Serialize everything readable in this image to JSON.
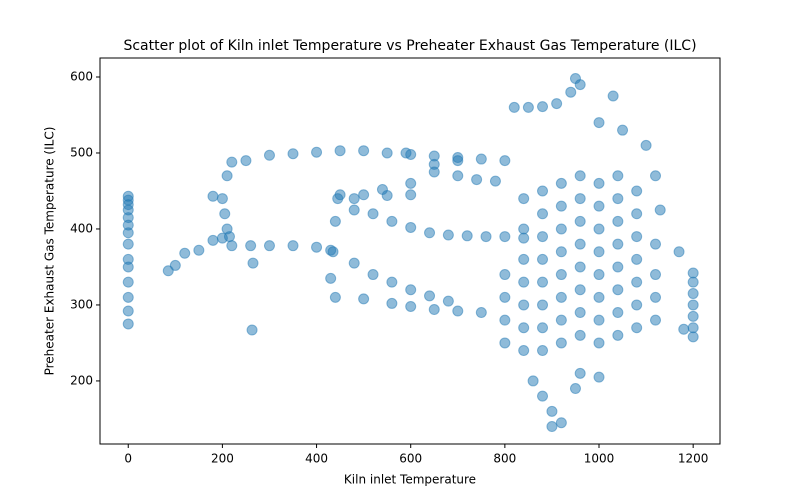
{
  "chart_data": {
    "type": "scatter",
    "title": "Scatter plot of Kiln inlet Temperature vs Preheater Exhaust Gas Temperature (ILC)",
    "xlabel": "Kiln inlet Temperature",
    "ylabel": "Preheater Exhaust Gas Temperature (ILC)",
    "color": "#1f77b4",
    "xlim": [
      -60,
      1257
    ],
    "ylim": [
      117,
      625
    ],
    "xticks": [
      0,
      200,
      400,
      600,
      800,
      1000,
      1200
    ],
    "yticks": [
      200,
      300,
      400,
      500,
      600
    ],
    "x": [
      0,
      0,
      0,
      0,
      0,
      0,
      0,
      0,
      0,
      0,
      0,
      0,
      0,
      0,
      85,
      100,
      120,
      150,
      180,
      200,
      215,
      210,
      205,
      200,
      210,
      220,
      250,
      300,
      350,
      400,
      450,
      500,
      550,
      600,
      650,
      700,
      750,
      800,
      220,
      260,
      300,
      350,
      400,
      430,
      430,
      435,
      440,
      445,
      450,
      500,
      550,
      600,
      480,
      520,
      560,
      600,
      640,
      680,
      720,
      760,
      800,
      840,
      480,
      520,
      560,
      600,
      640,
      680,
      440,
      500,
      560,
      600,
      650,
      700,
      750,
      590,
      650,
      700,
      740,
      780,
      480,
      540,
      600,
      650,
      700,
      820,
      850,
      880,
      910,
      940,
      950,
      960,
      1000,
      1030,
      1050,
      1100,
      1120,
      1130,
      1170,
      1180,
      860,
      880,
      900,
      920,
      900,
      950,
      1000,
      960,
      1200,
      1200,
      1200,
      1200,
      1200,
      1200,
      1200,
      180,
      265,
      263,
      800,
      800,
      800,
      800,
      840,
      840,
      840,
      840,
      840,
      840,
      840,
      880,
      880,
      880,
      880,
      880,
      880,
      880,
      880,
      920,
      920,
      920,
      920,
      920,
      920,
      920,
      920,
      960,
      960,
      960,
      960,
      960,
      960,
      960,
      960,
      1000,
      1000,
      1000,
      1000,
      1000,
      1000,
      1000,
      1000,
      1040,
      1040,
      1040,
      1040,
      1040,
      1040,
      1040,
      1040,
      1080,
      1080,
      1080,
      1080,
      1080,
      1080,
      1080,
      1120,
      1120,
      1120,
      1120
    ],
    "y": [
      275,
      292,
      310,
      330,
      350,
      360,
      380,
      395,
      405,
      415,
      425,
      432,
      438,
      443,
      345,
      352,
      368,
      372,
      385,
      388,
      390,
      400,
      420,
      440,
      470,
      488,
      490,
      497,
      499,
      501,
      503,
      503,
      500,
      498,
      496,
      494,
      492,
      490,
      378,
      378,
      378,
      378,
      376,
      372,
      335,
      370,
      410,
      440,
      445,
      445,
      444,
      445,
      425,
      420,
      410,
      402,
      395,
      392,
      391,
      390,
      390,
      388,
      355,
      340,
      330,
      320,
      312,
      305,
      310,
      308,
      302,
      298,
      294,
      292,
      290,
      500,
      485,
      470,
      465,
      463,
      440,
      452,
      460,
      475,
      490,
      560,
      560,
      561,
      565,
      580,
      598,
      590,
      540,
      575,
      530,
      510,
      470,
      425,
      370,
      268,
      200,
      180,
      160,
      145,
      140,
      190,
      205,
      210,
      258,
      270,
      285,
      300,
      315,
      330,
      342,
      443,
      355,
      267,
      250,
      280,
      310,
      340,
      240,
      270,
      300,
      330,
      360,
      400,
      440,
      240,
      270,
      300,
      330,
      360,
      390,
      420,
      450,
      250,
      280,
      310,
      340,
      370,
      400,
      430,
      460,
      260,
      290,
      320,
      350,
      380,
      410,
      440,
      470,
      250,
      280,
      310,
      340,
      370,
      400,
      430,
      460,
      260,
      290,
      320,
      350,
      380,
      410,
      440,
      470,
      270,
      300,
      330,
      360,
      390,
      420,
      450,
      280,
      310,
      340,
      380
    ]
  }
}
